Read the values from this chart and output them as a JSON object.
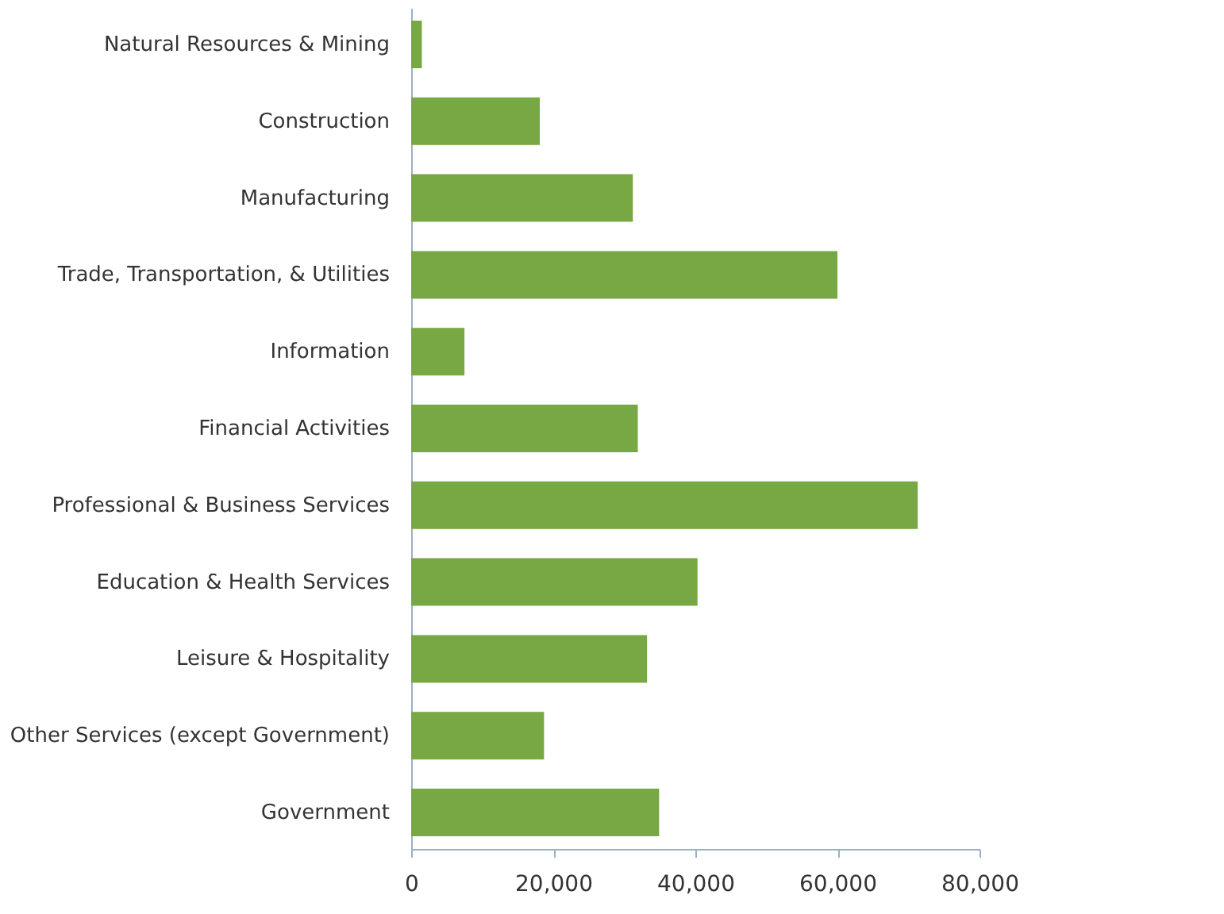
{
  "chart_data": {
    "type": "bar",
    "orientation": "horizontal",
    "categories": [
      "Natural Resources & Mining",
      "Construction",
      "Manufacturing",
      "Trade, Transportation, & Utilities",
      "Information",
      "Financial Activities",
      "Professional & Business Services",
      "Education & Health Services",
      "Leisure & Hospitality",
      "Other Services (except Government)",
      "Government"
    ],
    "values": [
      1500,
      18100,
      31200,
      60000,
      7500,
      31900,
      71300,
      40300,
      33200,
      18700,
      34900
    ],
    "color": "#77a844",
    "xlim": [
      0,
      80000
    ],
    "xticks": [
      0,
      {
        "value": 20000,
        "label": "20,000"
      },
      {
        "value": 40000,
        "label": "40,000"
      },
      {
        "value": 60000,
        "label": "60,000"
      },
      {
        "value": 80000,
        "label": "80,000"
      }
    ],
    "grid": false
  }
}
